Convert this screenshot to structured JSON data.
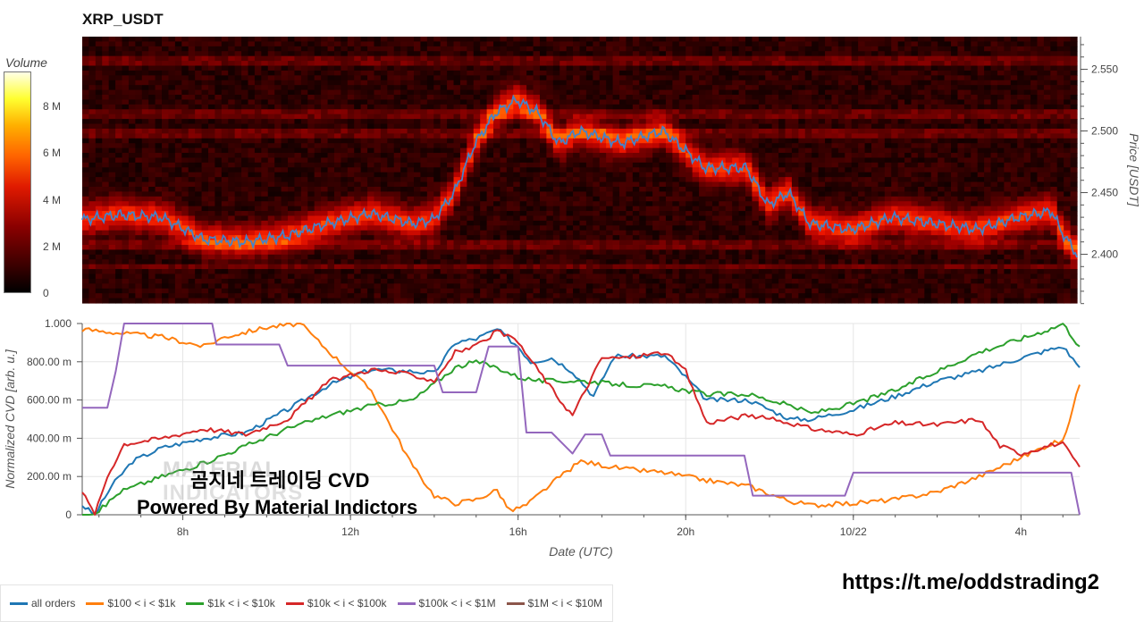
{
  "title": "XRP_USDT",
  "colorbar": {
    "label": "Volume",
    "ticks": [
      {
        "label": "0",
        "value": 0
      },
      {
        "label": "2 M",
        "value": 2
      },
      {
        "label": "4 M",
        "value": 4
      },
      {
        "label": "6 M",
        "value": 6
      },
      {
        "label": "8 M",
        "value": 8
      }
    ],
    "range": [
      0,
      9.5
    ]
  },
  "overlay": {
    "line1": "곰지네 트레이딩 CVD",
    "line2": "Powered By Material Indictors",
    "watermark_line1": "MATERIAL",
    "watermark_line2": "INDICATORS",
    "url": "https://t.me/oddstrading2"
  },
  "chart_data": [
    {
      "type": "heatmap",
      "title": "XRP_USDT",
      "ylabel": "Price [USDT]",
      "ylim": [
        2.3605,
        2.5765
      ],
      "yticks": [
        2.4,
        2.45,
        2.5,
        2.55
      ],
      "ytick_labels": [
        "2.400",
        "2.450",
        "2.500",
        "2.550"
      ],
      "xlim": [
        5.6,
        29.4
      ],
      "x_unit": "hours (UTC) since 10/21 00:00",
      "price_line": {
        "color": "#4682c8",
        "x": [
          5.6,
          6.5,
          7.5,
          8.5,
          9.5,
          10.5,
          11.5,
          12.5,
          13.5,
          14.0,
          14.5,
          15.0,
          15.5,
          16.0,
          16.5,
          17.0,
          17.5,
          18.5,
          19.5,
          20.5,
          21.5,
          22.0,
          22.5,
          23.0,
          24.0,
          25.0,
          26.0,
          27.0,
          28.0,
          28.8,
          29.0,
          29.4
        ],
        "y": [
          2.428,
          2.432,
          2.43,
          2.412,
          2.41,
          2.415,
          2.425,
          2.433,
          2.425,
          2.428,
          2.45,
          2.49,
          2.515,
          2.525,
          2.515,
          2.49,
          2.5,
          2.49,
          2.5,
          2.47,
          2.47,
          2.44,
          2.45,
          2.425,
          2.42,
          2.43,
          2.425,
          2.42,
          2.43,
          2.435,
          2.42,
          2.4
        ]
      }
    },
    {
      "type": "line",
      "ylabel": "Normalized CVD [arb. u.]",
      "xlabel": "Date (UTC)",
      "ylim": [
        0,
        1
      ],
      "yticks": [
        0,
        0.2,
        0.4,
        0.6,
        0.8,
        1.0
      ],
      "ytick_labels": [
        "0",
        "200.00 m",
        "400.00 m",
        "600.00 m",
        "800.00 m",
        "1.000"
      ],
      "xlim": [
        5.6,
        29.4
      ],
      "xticks": [
        8,
        12,
        16,
        20,
        24,
        28
      ],
      "xtick_labels": [
        "8h",
        "12h",
        "16h",
        "20h",
        "10/22",
        "4h"
      ],
      "series": [
        {
          "name": "all orders",
          "color": "#1f77b4",
          "x": [
            5.6,
            5.9,
            6.3,
            6.8,
            7.5,
            8.5,
            9.5,
            10.5,
            11.5,
            12.5,
            13.5,
            14.0,
            14.5,
            15.0,
            15.5,
            16.0,
            16.3,
            16.8,
            17.3,
            17.8,
            18.3,
            19.5,
            20.0,
            20.5,
            21.5,
            22.0,
            22.5,
            23.0,
            24.0,
            25.0,
            26.0,
            27.0,
            28.0,
            28.8,
            29.0,
            29.4
          ],
          "y": [
            0.05,
            0.0,
            0.15,
            0.28,
            0.35,
            0.4,
            0.43,
            0.55,
            0.68,
            0.76,
            0.75,
            0.74,
            0.9,
            0.92,
            0.97,
            0.88,
            0.8,
            0.82,
            0.75,
            0.62,
            0.83,
            0.83,
            0.72,
            0.6,
            0.6,
            0.55,
            0.5,
            0.5,
            0.55,
            0.62,
            0.7,
            0.75,
            0.82,
            0.87,
            0.88,
            0.77
          ]
        },
        {
          "name": "$100 < i < $1k",
          "color": "#ff7f0e",
          "x": [
            5.6,
            6.5,
            7.5,
            8.5,
            9.0,
            10.0,
            10.8,
            11.5,
            12.5,
            13.0,
            13.5,
            14.0,
            14.5,
            15.0,
            15.5,
            15.8,
            16.2,
            17.0,
            17.5,
            18.5,
            19.5,
            20.5,
            21.5,
            22.5,
            23.0,
            24.0,
            25.0,
            26.0,
            27.0,
            28.0,
            28.8,
            29.0,
            29.4
          ],
          "y": [
            0.97,
            0.95,
            0.93,
            0.88,
            0.93,
            0.98,
            1.0,
            0.85,
            0.65,
            0.45,
            0.25,
            0.1,
            0.06,
            0.08,
            0.13,
            0.02,
            0.05,
            0.2,
            0.28,
            0.24,
            0.22,
            0.18,
            0.15,
            0.07,
            0.05,
            0.06,
            0.08,
            0.12,
            0.2,
            0.3,
            0.38,
            0.38,
            0.68
          ]
        },
        {
          "name": "$1k < i < $10k",
          "color": "#2ca02c",
          "x": [
            5.6,
            6.0,
            6.5,
            7.5,
            8.5,
            9.5,
            10.5,
            11.5,
            12.5,
            13.5,
            14.5,
            15.0,
            15.5,
            16.0,
            16.5,
            17.5,
            18.5,
            19.5,
            20.5,
            21.5,
            22.5,
            23.0,
            24.0,
            25.0,
            26.0,
            27.0,
            28.0,
            28.8,
            29.0,
            29.4
          ],
          "y": [
            0.0,
            0.02,
            0.12,
            0.2,
            0.27,
            0.36,
            0.45,
            0.52,
            0.57,
            0.6,
            0.77,
            0.8,
            0.77,
            0.72,
            0.7,
            0.7,
            0.68,
            0.67,
            0.63,
            0.63,
            0.57,
            0.53,
            0.58,
            0.65,
            0.75,
            0.85,
            0.92,
            0.98,
            1.0,
            0.88
          ]
        },
        {
          "name": "$10k < i < $100k",
          "color": "#d62728",
          "x": [
            5.6,
            5.9,
            6.2,
            6.6,
            7.5,
            8.5,
            9.5,
            10.5,
            11.5,
            12.5,
            13.5,
            14.0,
            14.5,
            15.0,
            15.5,
            16.0,
            16.5,
            17.0,
            17.3,
            17.6,
            18.0,
            18.5,
            19.5,
            20.0,
            20.5,
            21.5,
            22.5,
            23.0,
            24.0,
            25.0,
            26.0,
            27.0,
            27.5,
            28.0,
            28.8,
            29.0,
            29.4
          ],
          "y": [
            0.12,
            0.0,
            0.2,
            0.37,
            0.4,
            0.45,
            0.42,
            0.5,
            0.7,
            0.76,
            0.73,
            0.7,
            0.85,
            0.88,
            0.96,
            0.9,
            0.75,
            0.6,
            0.52,
            0.65,
            0.82,
            0.82,
            0.85,
            0.75,
            0.48,
            0.52,
            0.48,
            0.45,
            0.42,
            0.48,
            0.47,
            0.5,
            0.36,
            0.32,
            0.37,
            0.37,
            0.25
          ]
        },
        {
          "name": "$100k < i < $1M",
          "color": "#9467bd",
          "step": true,
          "x": [
            5.6,
            6.2,
            6.4,
            6.6,
            8.7,
            8.8,
            10.3,
            10.5,
            14.0,
            14.2,
            15.0,
            15.3,
            16.0,
            16.2,
            16.8,
            17.3,
            17.6,
            18.0,
            18.2,
            21.4,
            21.6,
            23.8,
            24.0,
            29.2,
            29.4
          ],
          "y": [
            0.56,
            0.56,
            0.75,
            1.0,
            1.0,
            0.89,
            0.89,
            0.78,
            0.78,
            0.64,
            0.64,
            0.88,
            0.88,
            0.43,
            0.43,
            0.32,
            0.42,
            0.42,
            0.31,
            0.31,
            0.1,
            0.1,
            0.22,
            0.22,
            0.0
          ]
        },
        {
          "name": "$1M < i < $10M",
          "color": "#8c564b",
          "x": [],
          "y": []
        }
      ]
    }
  ],
  "legend": {
    "placement": "bottom-left",
    "items": [
      {
        "label": "all orders",
        "color": "#1f77b4"
      },
      {
        "label": "$100 < i < $1k",
        "color": "#ff7f0e"
      },
      {
        "label": "$1k < i < $10k",
        "color": "#2ca02c"
      },
      {
        "label": "$10k < i < $100k",
        "color": "#d62728"
      },
      {
        "label": "$100k < i < $1M",
        "color": "#9467bd"
      },
      {
        "label": "$1M < i < $10M",
        "color": "#8c564b"
      }
    ]
  }
}
